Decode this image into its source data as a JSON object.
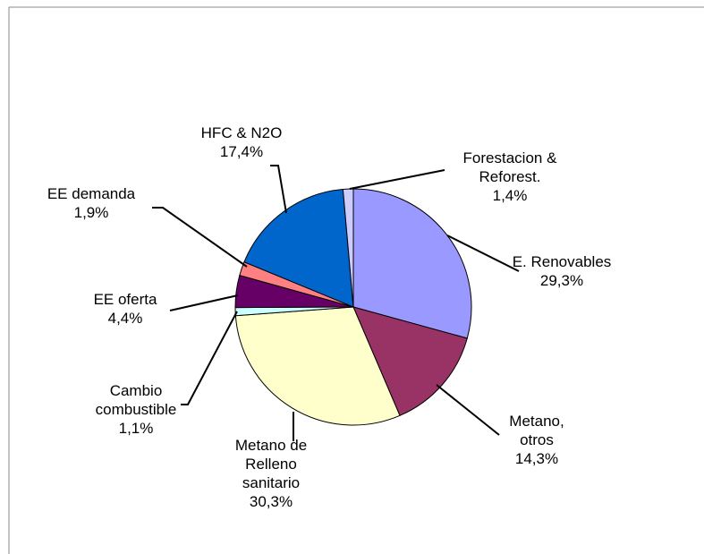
{
  "chart_data": {
    "type": "pie",
    "categories": [
      "E. Renovables",
      "Metano,\notros",
      "Metano de\nRelleno\nsanitario",
      "Cambio\ncombustible",
      "EE oferta",
      "EE demanda",
      "HFC & N2O",
      "Forestacion &\nReforest."
    ],
    "values": [
      29.3,
      14.3,
      30.3,
      1.1,
      4.4,
      1.9,
      17.4,
      1.4
    ],
    "value_labels": [
      "29,3%",
      "14,3%",
      "30,3%",
      "1,1%",
      "4,4%",
      "1,9%",
      "17,4%",
      "1,4%"
    ],
    "colors": [
      "#9999ff",
      "#993366",
      "#ffffcc",
      "#ccffff",
      "#660066",
      "#ff8080",
      "#0066cc",
      "#ccccff"
    ]
  }
}
